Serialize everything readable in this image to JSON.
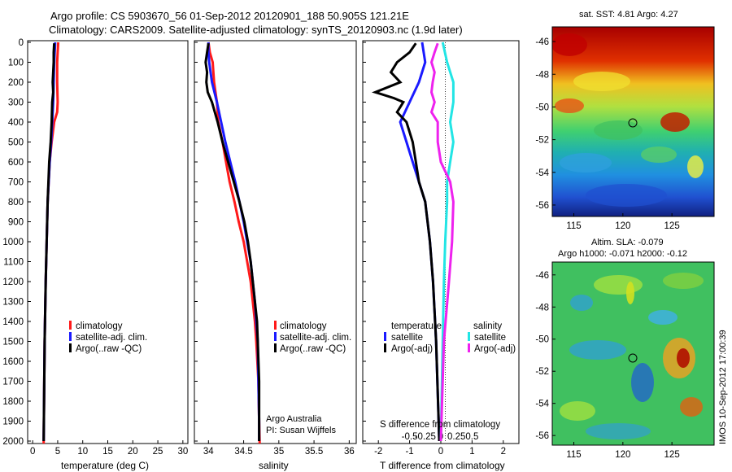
{
  "titles": {
    "line1": "Argo profile: CS 5903670_56 01-Sep-2012 20120901_188 50.905S 121.21E",
    "line2": "Climatology: CARS2009. Satellite-adjusted climatology: synTS_20120903.nc (1.9d later)"
  },
  "colors": {
    "red": "#ff1a1a",
    "blue": "#1a1aff",
    "black": "#000000",
    "cyan": "#22e5e5",
    "magenta": "#ee22ee"
  },
  "depth_ticks": [
    "0",
    "100",
    "200",
    "300",
    "400",
    "500",
    "600",
    "700",
    "800",
    "900",
    "1000",
    "1100",
    "1200",
    "1300",
    "1400",
    "1500",
    "1600",
    "1700",
    "1800",
    "1900",
    "2000"
  ],
  "panels": {
    "temperature": {
      "xlabel": "temperature (deg C)",
      "xticks": [
        "0",
        "5",
        "10",
        "15",
        "20",
        "25",
        "30"
      ],
      "legend": [
        "climatology",
        "satellite-adj. clim.",
        "Argo(..raw -QC)"
      ]
    },
    "salinity": {
      "xlabel": "salinity",
      "xticks": [
        "34",
        "34.5",
        "35",
        "35.5",
        "36"
      ],
      "legend": [
        "climatology",
        "satellite-adj. clim.",
        "Argo(..raw -QC)"
      ],
      "note1": "Argo Australia",
      "note2": "PI: Susan Wijffels"
    },
    "difference": {
      "xlabel": "T difference from climatology",
      "toplabel": "S difference from climatology",
      "xticks_T": [
        "-2",
        "-1",
        "0",
        "1",
        "2"
      ],
      "xticks_S": [
        "-0.5",
        "-0.25",
        "0",
        "0.25",
        "0.5"
      ],
      "legend_temp_title": "temperature",
      "legend_sal_title": "salinity",
      "legend_temp": [
        "satellite",
        "Argo(-adj)"
      ],
      "legend_sal": [
        "satellite",
        "Argo(-adj)"
      ]
    }
  },
  "maps": {
    "sst": {
      "title": "sat. SST: 4.81  Argo: 4.27",
      "yticks": [
        "-46",
        "-48",
        "-50",
        "-52",
        "-54",
        "-56"
      ],
      "xticks": [
        "115",
        "120",
        "125"
      ]
    },
    "sla": {
      "title1": "Altim. SLA: -0.079",
      "title2": "Argo h1000: -0.071 h2000: -0.12",
      "yticks": [
        "-46",
        "-48",
        "-50",
        "-52",
        "-54",
        "-56"
      ],
      "xticks": [
        "115",
        "120",
        "125"
      ]
    },
    "credit": "IMOS 10-Sep-2012 17:00:39"
  },
  "chart_data": [
    {
      "type": "line",
      "title": "",
      "xlabel": "temperature (deg C)",
      "ylabel": "",
      "xlim": [
        -1,
        31
      ],
      "ylim": [
        2050,
        0
      ],
      "series": [
        {
          "name": "climatology",
          "color": "red",
          "depth": [
            0,
            50,
            100,
            200,
            300,
            350,
            400,
            500,
            600,
            800,
            1000,
            1200,
            1500,
            2000,
            2050
          ],
          "values": [
            5.1,
            5.0,
            4.9,
            4.9,
            5.0,
            4.9,
            4.3,
            3.8,
            3.4,
            3.0,
            2.8,
            2.6,
            2.4,
            2.2,
            2.2
          ]
        },
        {
          "name": "satellite-adj. clim.",
          "color": "blue",
          "depth": [
            0,
            50,
            100,
            200,
            300,
            400,
            500,
            600,
            800,
            1000,
            1200,
            1500,
            2000
          ],
          "values": [
            4.5,
            4.4,
            4.3,
            4.2,
            4.1,
            3.9,
            3.7,
            3.4,
            3.0,
            2.8,
            2.6,
            2.4,
            2.2
          ]
        },
        {
          "name": "Argo(..raw -QC)",
          "color": "black",
          "depth": [
            5,
            50,
            100,
            150,
            200,
            250,
            300,
            400,
            500,
            600,
            800,
            1000,
            1200,
            1500,
            2000
          ],
          "values": [
            4.3,
            4.2,
            4.2,
            4.1,
            4.0,
            4.1,
            3.9,
            3.8,
            3.6,
            3.3,
            3.0,
            2.8,
            2.6,
            2.4,
            2.2
          ]
        }
      ]
    },
    {
      "type": "line",
      "title": "",
      "xlabel": "salinity",
      "ylabel": "",
      "xlim": [
        33.8,
        36.1
      ],
      "ylim": [
        2050,
        0
      ],
      "series": [
        {
          "name": "climatology",
          "color": "red",
          "depth": [
            0,
            50,
            100,
            200,
            300,
            400,
            500,
            600,
            700,
            800,
            900,
            1000,
            1100,
            1200,
            1300,
            1400,
            1500,
            1700,
            1900,
            2050
          ],
          "values": [
            34.0,
            34.02,
            34.06,
            34.08,
            34.12,
            34.14,
            34.2,
            34.25,
            34.3,
            34.37,
            34.43,
            34.5,
            34.55,
            34.6,
            34.63,
            34.66,
            34.68,
            34.71,
            34.72,
            34.73
          ]
        },
        {
          "name": "satellite-adj. clim.",
          "color": "blue",
          "depth": [
            0,
            50,
            100,
            200,
            300,
            400,
            500,
            600,
            700,
            800,
            900,
            1000,
            1100,
            1200,
            1300,
            1400,
            1500,
            1700,
            1900,
            2000
          ],
          "values": [
            34.0,
            34.0,
            34.01,
            34.05,
            34.12,
            34.18,
            34.24,
            34.31,
            34.38,
            34.44,
            34.5,
            34.55,
            34.6,
            34.63,
            34.66,
            34.68,
            34.7,
            34.71,
            34.72,
            34.72
          ]
        },
        {
          "name": "Argo(..raw -QC)",
          "color": "black",
          "depth": [
            5,
            50,
            100,
            150,
            200,
            250,
            300,
            400,
            500,
            600,
            700,
            800,
            900,
            1000,
            1100,
            1200,
            1300,
            1400,
            1500,
            1700,
            1900,
            2000
          ],
          "values": [
            34.0,
            33.98,
            33.96,
            33.98,
            33.97,
            33.99,
            34.05,
            34.13,
            34.2,
            34.28,
            34.36,
            34.44,
            34.51,
            34.56,
            34.6,
            34.63,
            34.66,
            34.69,
            34.7,
            34.72,
            34.72,
            34.72
          ]
        }
      ]
    },
    {
      "type": "line",
      "title": "",
      "xlabel": "T difference from climatology",
      "ylabel": "",
      "xlim": [
        -2.5,
        2.5
      ],
      "ylim": [
        2050,
        0
      ],
      "series": [
        {
          "name": "satellite",
          "color": "blue",
          "depth": [
            0,
            100,
            200,
            300,
            400,
            500,
            600,
            700,
            800,
            1000,
            1200,
            1500,
            2000
          ],
          "values": [
            -0.6,
            -0.5,
            -0.7,
            -1.0,
            -1.3,
            -1.1,
            -0.9,
            -0.7,
            -0.5,
            -0.35,
            -0.25,
            -0.15,
            -0.05
          ]
        },
        {
          "name": "Argo(-adj)",
          "color": "black",
          "depth": [
            5,
            50,
            100,
            150,
            200,
            250,
            280,
            300,
            350,
            400,
            500,
            600,
            700,
            800,
            1000,
            1200,
            1500,
            2000
          ],
          "values": [
            -0.8,
            -1.0,
            -1.4,
            -1.6,
            -1.3,
            -2.1,
            -1.5,
            -1.2,
            -1.4,
            -1.1,
            -0.9,
            -0.8,
            -0.7,
            -0.5,
            -0.35,
            -0.25,
            -0.15,
            -0.05
          ]
        },
        {
          "name": "satellite",
          "color": "cyan",
          "depth": [
            0,
            100,
            200,
            300,
            400,
            500,
            600,
            700,
            800,
            1000,
            1200,
            1500,
            2000
          ],
          "values": [
            0.03,
            0.1,
            0.2,
            0.2,
            0.15,
            0.2,
            0.15,
            0.1,
            0.1,
            0.07,
            0.05,
            0.03,
            0.0
          ]
        },
        {
          "name": "Argo(-adj)",
          "color": "magenta",
          "depth": [
            5,
            50,
            100,
            150,
            200,
            250,
            300,
            350,
            400,
            500,
            600,
            700,
            800,
            1000,
            1200,
            1500,
            2000
          ],
          "values": [
            -0.05,
            -0.1,
            -0.15,
            -0.1,
            -0.13,
            -0.15,
            -0.1,
            -0.15,
            -0.05,
            -0.05,
            0.0,
            0.15,
            0.2,
            0.18,
            0.13,
            0.05,
            0.0
          ]
        }
      ]
    }
  ]
}
